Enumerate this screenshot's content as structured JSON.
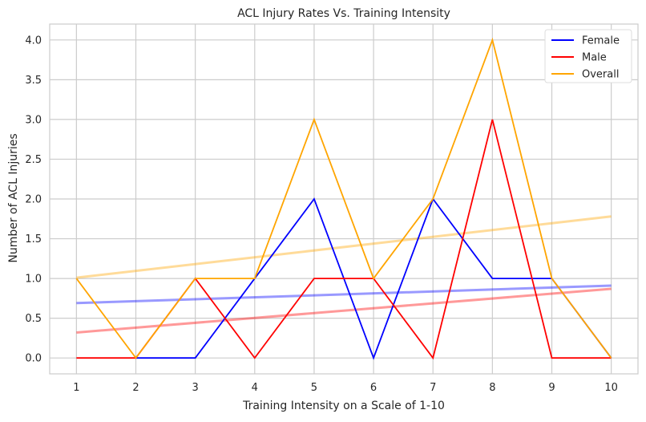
{
  "chart_data": {
    "type": "line",
    "title": "ACL Injury Rates Vs. Training Intensity",
    "xlabel": "Training Intensity on a Scale of 1-10",
    "ylabel": "Number of ACL Injuries",
    "x": [
      1,
      2,
      3,
      4,
      5,
      6,
      7,
      8,
      9,
      10
    ],
    "xlim": [
      0.55,
      10.45
    ],
    "ylim": [
      -0.2,
      4.2
    ],
    "yticks": [
      "0.0",
      "0.5",
      "1.0",
      "1.5",
      "2.0",
      "2.5",
      "3.0",
      "3.5",
      "4.0"
    ],
    "xticks": [
      "1",
      "2",
      "3",
      "4",
      "5",
      "6",
      "7",
      "8",
      "9",
      "10"
    ],
    "grid": true,
    "legend": "top-right",
    "series": [
      {
        "name": "Female",
        "color": "#0000ff",
        "values": [
          null,
          0,
          0,
          1,
          2,
          0,
          2,
          1,
          1,
          0
        ],
        "trend": [
          0.69,
          0.91
        ]
      },
      {
        "name": "Male",
        "color": "#ff0000",
        "values": [
          0,
          0,
          1,
          0,
          1,
          1,
          0,
          3,
          0,
          0
        ],
        "trend": [
          0.32,
          0.87
        ]
      },
      {
        "name": "Overall",
        "color": "#ffa500",
        "values": [
          1,
          0,
          1,
          1,
          3,
          1,
          2,
          4,
          1,
          0
        ],
        "trend": [
          1.01,
          1.78
        ]
      }
    ]
  }
}
